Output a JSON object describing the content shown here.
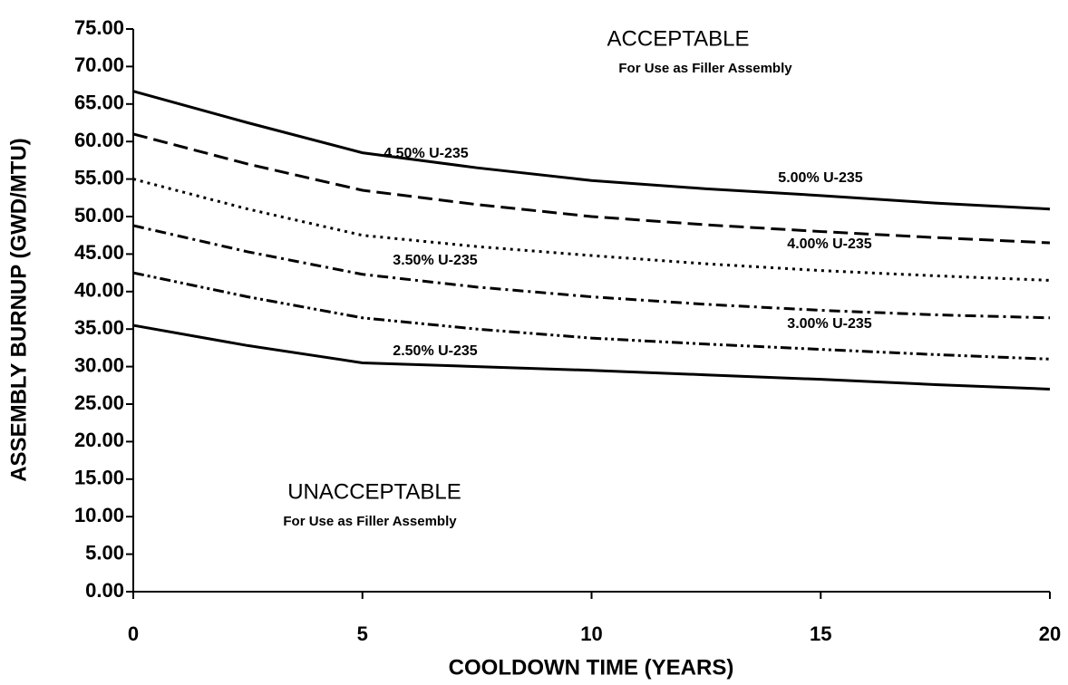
{
  "chart_data": {
    "type": "line",
    "xlabel": "COOLDOWN TIME (YEARS)",
    "ylabel": "ASSEMBLY BURNUP (GWD/MTU)",
    "annotations": [
      "ACCEPTABLE",
      "For Use as Filler Assembly",
      "UNACCEPTABLE",
      "For Use as Filler Assembly"
    ],
    "x": [
      0,
      2.5,
      5,
      7.5,
      10,
      12.5,
      15,
      17.5,
      20
    ],
    "series": [
      {
        "name": "5.00% U-235",
        "color": "#000000",
        "style": "solid",
        "values": [
          66.7,
          62.5,
          58.5,
          56.5,
          54.8,
          53.7,
          52.8,
          51.8,
          51.0
        ]
      },
      {
        "name": "4.50% U-235",
        "color": "#000000",
        "style": "dashed",
        "values": [
          61.0,
          57.0,
          53.5,
          51.6,
          50.0,
          48.9,
          48.0,
          47.2,
          46.5
        ]
      },
      {
        "name": "4.00% U-235",
        "color": "#000000",
        "style": "dotted",
        "values": [
          55.0,
          51.0,
          47.5,
          46.0,
          44.8,
          43.7,
          42.8,
          42.1,
          41.5
        ]
      },
      {
        "name": "3.50% U-235",
        "color": "#000000",
        "style": "dashdot",
        "values": [
          48.8,
          45.3,
          42.3,
          40.6,
          39.3,
          38.3,
          37.5,
          36.9,
          36.5
        ]
      },
      {
        "name": "3.00% U-235",
        "color": "#000000",
        "style": "dashdotdot",
        "values": [
          42.5,
          39.3,
          36.5,
          35.0,
          33.8,
          33.0,
          32.3,
          31.6,
          31.0
        ]
      },
      {
        "name": "2.50% U-235",
        "color": "#000000",
        "style": "solid",
        "values": [
          35.5,
          32.8,
          30.5,
          30.0,
          29.5,
          28.9,
          28.3,
          27.6,
          27.0
        ]
      }
    ],
    "xlim": [
      0,
      20
    ],
    "xticks": [
      0,
      5,
      10,
      15,
      20
    ],
    "ylim": [
      0,
      75
    ],
    "yticks": [
      {
        "value": 0,
        "label": "0.00"
      },
      {
        "value": 5,
        "label": "5.00"
      },
      {
        "value": 10,
        "label": "10.00"
      },
      {
        "value": 15,
        "label": "15.00"
      },
      {
        "value": 20,
        "label": "20.00"
      },
      {
        "value": 25,
        "label": "25.00"
      },
      {
        "value": 30,
        "label": "30.00"
      },
      {
        "value": 35,
        "label": "35.00"
      },
      {
        "value": 40,
        "label": "40.00"
      },
      {
        "value": 45,
        "label": "45.00"
      },
      {
        "value": 50,
        "label": "50.00"
      },
      {
        "value": 55,
        "label": "55.00"
      },
      {
        "value": 60,
        "label": "60.00"
      },
      {
        "value": 65,
        "label": "65.00"
      },
      {
        "value": 70,
        "label": "70.00"
      },
      {
        "value": 75,
        "label": "75.00"
      }
    ],
    "grid": false
  }
}
